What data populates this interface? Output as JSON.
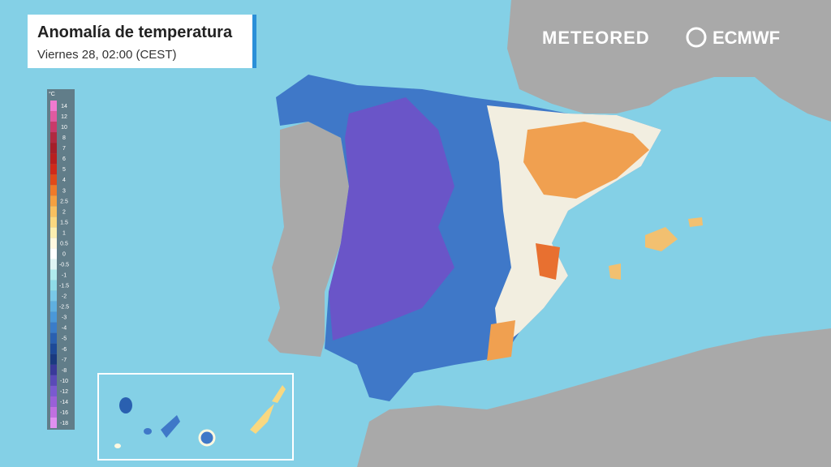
{
  "header": {
    "title": "Anomalía de temperatura",
    "subtitle": "Viernes 28, 02:00 (CEST)"
  },
  "brand": {
    "primary": "METEORED",
    "partner": "ECMWF"
  },
  "legend": {
    "unit": "°C",
    "stops": [
      {
        "value": 14,
        "color": "#f07ad0"
      },
      {
        "value": 12,
        "color": "#e05aa0"
      },
      {
        "value": 10,
        "color": "#c83a6a"
      },
      {
        "value": 8,
        "color": "#b02a40"
      },
      {
        "value": 7,
        "color": "#a51f2a"
      },
      {
        "value": 6,
        "color": "#b81f1f"
      },
      {
        "value": 5,
        "color": "#d02a1a"
      },
      {
        "value": 4,
        "color": "#e04a1a"
      },
      {
        "value": 3,
        "color": "#ee7a2a"
      },
      {
        "value": 2.5,
        "color": "#f4a040"
      },
      {
        "value": 2,
        "color": "#f7c060"
      },
      {
        "value": 1.5,
        "color": "#f9d880"
      },
      {
        "value": 1,
        "color": "#fbeeb0"
      },
      {
        "value": 0.5,
        "color": "#fff8e0"
      },
      {
        "value": 0,
        "color": "#ffffff"
      },
      {
        "value": -0.5,
        "color": "#e0f5f5"
      },
      {
        "value": -1,
        "color": "#b0ecee"
      },
      {
        "value": -1.5,
        "color": "#8fdce8"
      },
      {
        "value": -2,
        "color": "#79c8e8"
      },
      {
        "value": -2.5,
        "color": "#5fb0e0"
      },
      {
        "value": -3,
        "color": "#4a98d8"
      },
      {
        "value": -4,
        "color": "#3a7cc8"
      },
      {
        "value": -5,
        "color": "#2a60b0"
      },
      {
        "value": -6,
        "color": "#1e4a98"
      },
      {
        "value": -7,
        "color": "#1a3a80"
      },
      {
        "value": -8,
        "color": "#3a3a9a"
      },
      {
        "value": -10,
        "color": "#5a4ab8"
      },
      {
        "value": -12,
        "color": "#7a5ad0"
      },
      {
        "value": -14,
        "color": "#9a60d8"
      },
      {
        "value": -16,
        "color": "#c070e0"
      },
      {
        "value": -18,
        "color": "#e090f0"
      }
    ]
  }
}
